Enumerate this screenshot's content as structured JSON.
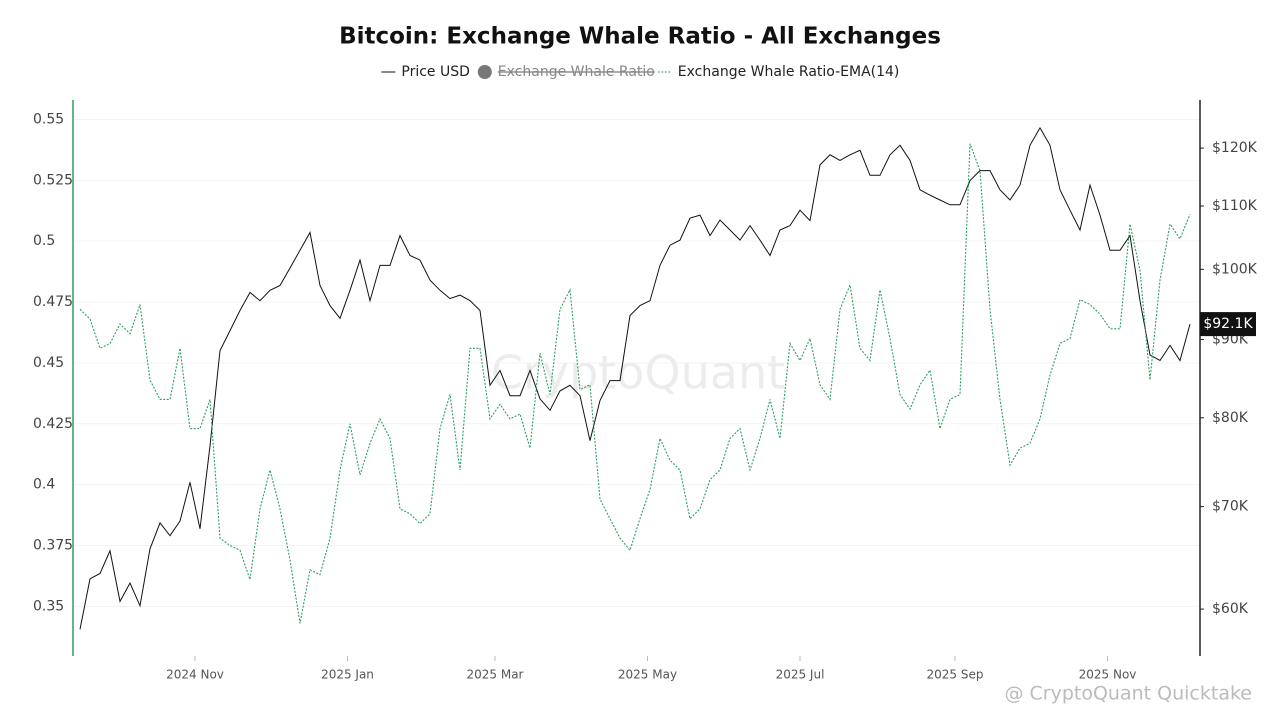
{
  "chart_data": {
    "type": "line",
    "title": "Bitcoin: Exchange Whale Ratio - All Exchanges",
    "watermark": "CryptoQuant",
    "footer": "@ CryptoQuant Quicktake",
    "price_marker": "$92.1K",
    "grid": true,
    "xlim": [
      0,
      111
    ],
    "xticks": [
      {
        "value": 11.5,
        "label": "2024 Nov"
      },
      {
        "value": 26.75,
        "label": "2025 Jan"
      },
      {
        "value": 41.5,
        "label": "2025 Mar"
      },
      {
        "value": 56.75,
        "label": "2025 May"
      },
      {
        "value": 72,
        "label": "2025 Jul"
      },
      {
        "value": 87.5,
        "label": "2025 Sep"
      },
      {
        "value": 102.75,
        "label": "2025 Nov"
      }
    ],
    "ylim": [
      0.33,
      0.558
    ],
    "yticks": [
      0.35,
      0.375,
      0.4,
      0.425,
      0.45,
      0.475,
      0.5,
      0.525,
      0.55
    ],
    "y2lim": [
      56000,
      129000
    ],
    "y2log": true,
    "y2ticks": [
      {
        "value": 60000,
        "label": "$60K"
      },
      {
        "value": 70000,
        "label": "$70K"
      },
      {
        "value": 80000,
        "label": "$80K"
      },
      {
        "value": 90000,
        "label": "$90K"
      },
      {
        "value": 100000,
        "label": "$100K"
      },
      {
        "value": 110000,
        "label": "$110K"
      },
      {
        "value": 120000,
        "label": "$120K"
      }
    ],
    "series": [
      {
        "name": "Price USD",
        "color": "#111111",
        "axis": "y2",
        "dash": false,
        "values": [
          58200,
          62800,
          63300,
          65500,
          60700,
          62400,
          60300,
          65700,
          68300,
          67000,
          68500,
          72600,
          67700,
          76700,
          88500,
          91200,
          94000,
          96600,
          95400,
          96900,
          97600,
          100200,
          102900,
          105700,
          97600,
          94700,
          92900,
          96900,
          101400,
          95400,
          100600,
          100600,
          105200,
          102100,
          101400,
          98400,
          96900,
          95700,
          96200,
          95400,
          94000,
          84000,
          85900,
          82700,
          82700,
          85900,
          82300,
          80900,
          83300,
          84000,
          82700,
          77300,
          82100,
          84600,
          84600,
          93300,
          94700,
          95400,
          100600,
          103700,
          104500,
          108000,
          108500,
          105200,
          107700,
          106100,
          104500,
          106800,
          104500,
          102100,
          106100,
          106800,
          109300,
          107600,
          117000,
          118800,
          117800,
          118800,
          119600,
          115200,
          115200,
          118800,
          120500,
          117800,
          112700,
          111800,
          111000,
          110200,
          110200,
          114300,
          116000,
          116000,
          112700,
          111000,
          113500,
          120500,
          123700,
          120500,
          112700,
          109300,
          106100,
          113500,
          108500,
          102900,
          102900,
          105200,
          95400,
          87900,
          87200,
          89200,
          87200,
          92100
        ]
      },
      {
        "name": "Exchange Whale Ratio",
        "color": "#777777",
        "visible": false
      },
      {
        "name": "Exchange Whale Ratio-EMA(14)",
        "color": "#2e9e62",
        "axis": "y",
        "dash": true,
        "values": [
          0.472,
          0.468,
          0.456,
          0.458,
          0.466,
          0.462,
          0.474,
          0.443,
          0.435,
          0.435,
          0.456,
          0.423,
          0.423,
          0.435,
          0.378,
          0.375,
          0.373,
          0.361,
          0.39,
          0.406,
          0.39,
          0.369,
          0.343,
          0.365,
          0.363,
          0.378,
          0.406,
          0.425,
          0.404,
          0.417,
          0.427,
          0.419,
          0.39,
          0.388,
          0.384,
          0.388,
          0.423,
          0.437,
          0.406,
          0.456,
          0.456,
          0.427,
          0.433,
          0.427,
          0.429,
          0.415,
          0.454,
          0.437,
          0.472,
          0.48,
          0.439,
          0.441,
          0.394,
          0.386,
          0.378,
          0.373,
          0.386,
          0.398,
          0.419,
          0.41,
          0.406,
          0.386,
          0.39,
          0.402,
          0.406,
          0.419,
          0.423,
          0.406,
          0.419,
          0.435,
          0.419,
          0.458,
          0.451,
          0.46,
          0.441,
          0.435,
          0.472,
          0.482,
          0.456,
          0.451,
          0.48,
          0.46,
          0.437,
          0.431,
          0.441,
          0.447,
          0.423,
          0.435,
          0.437,
          0.54,
          0.529,
          0.472,
          0.435,
          0.408,
          0.415,
          0.417,
          0.427,
          0.445,
          0.458,
          0.46,
          0.476,
          0.474,
          0.47,
          0.464,
          0.464,
          0.507,
          0.488,
          0.443,
          0.484,
          0.507,
          0.501,
          0.511
        ]
      }
    ]
  }
}
